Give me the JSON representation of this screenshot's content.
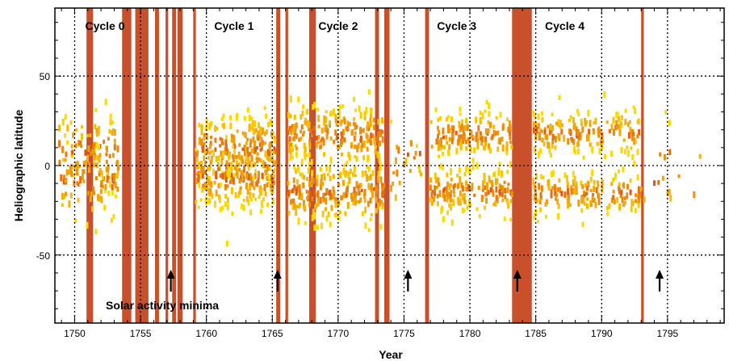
{
  "chart_data": {
    "type": "scatter",
    "title": "",
    "xlabel": "Year",
    "ylabel": "Heliographic latitude",
    "xlim": [
      1748.5,
      1799.3
    ],
    "ylim": [
      -88,
      88
    ],
    "x_ticks": [
      1750,
      1755,
      1760,
      1765,
      1770,
      1775,
      1780,
      1785,
      1790,
      1795
    ],
    "y_ticks": [
      50,
      0,
      -50
    ],
    "grid": "dotted",
    "point_color_low": "#ffd800",
    "point_color_high": "#d8561a",
    "gap_color": "#c8502a",
    "cycle_labels": [
      {
        "text": "Cycle 0",
        "year": 1752.3
      },
      {
        "text": "Cycle 1",
        "year": 1762.1
      },
      {
        "text": "Cycle 2",
        "year": 1770.0
      },
      {
        "text": "Cycle 3",
        "year": 1779.0
      },
      {
        "text": "Cycle 4",
        "year": 1787.2
      }
    ],
    "minima_years": [
      1757.3,
      1765.4,
      1775.3,
      1783.6,
      1794.4
    ],
    "minima_label": "Solar activity minima",
    "data_gaps": [
      [
        1750.9,
        1751.4
      ],
      [
        1753.6,
        1754.3
      ],
      [
        1754.6,
        1755.6
      ],
      [
        1756.1,
        1756.4
      ],
      [
        1756.9,
        1757.1
      ],
      [
        1757.4,
        1757.7
      ],
      [
        1757.8,
        1758.2
      ],
      [
        1759.0,
        1759.2
      ],
      [
        1765.3,
        1765.6
      ],
      [
        1766.0,
        1766.2
      ],
      [
        1767.8,
        1768.3
      ],
      [
        1772.8,
        1773.1
      ],
      [
        1773.5,
        1773.9
      ],
      [
        1776.6,
        1776.9
      ],
      [
        1783.2,
        1784.7
      ],
      [
        1793.0,
        1793.2
      ]
    ],
    "clusters": [
      {
        "x": [
          1748.8,
          1753.4
        ],
        "centers": [
          8,
          -8
        ],
        "spread": 20,
        "n": 170
      },
      {
        "x": [
          1759.2,
          1765.3
        ],
        "centers": [
          10,
          -6
        ],
        "spread": 17,
        "n": 380
      },
      {
        "x": [
          1766.2,
          1773.5
        ],
        "centers": [
          17,
          -15
        ],
        "spread": 16,
        "n": 440
      },
      {
        "x": [
          1774.0,
          1776.4
        ],
        "centers": [
          5,
          -10
        ],
        "spread": 18,
        "n": 22
      },
      {
        "x": [
          1777.0,
          1783.2
        ],
        "centers": [
          17,
          -14
        ],
        "spread": 12,
        "n": 300
      },
      {
        "x": [
          1784.8,
          1793.0
        ],
        "centers": [
          18,
          -16
        ],
        "spread": 11,
        "n": 320
      },
      {
        "x": [
          1793.2,
          1797.5
        ],
        "centers": [
          10,
          -10
        ],
        "spread": 14,
        "n": 16
      }
    ]
  }
}
